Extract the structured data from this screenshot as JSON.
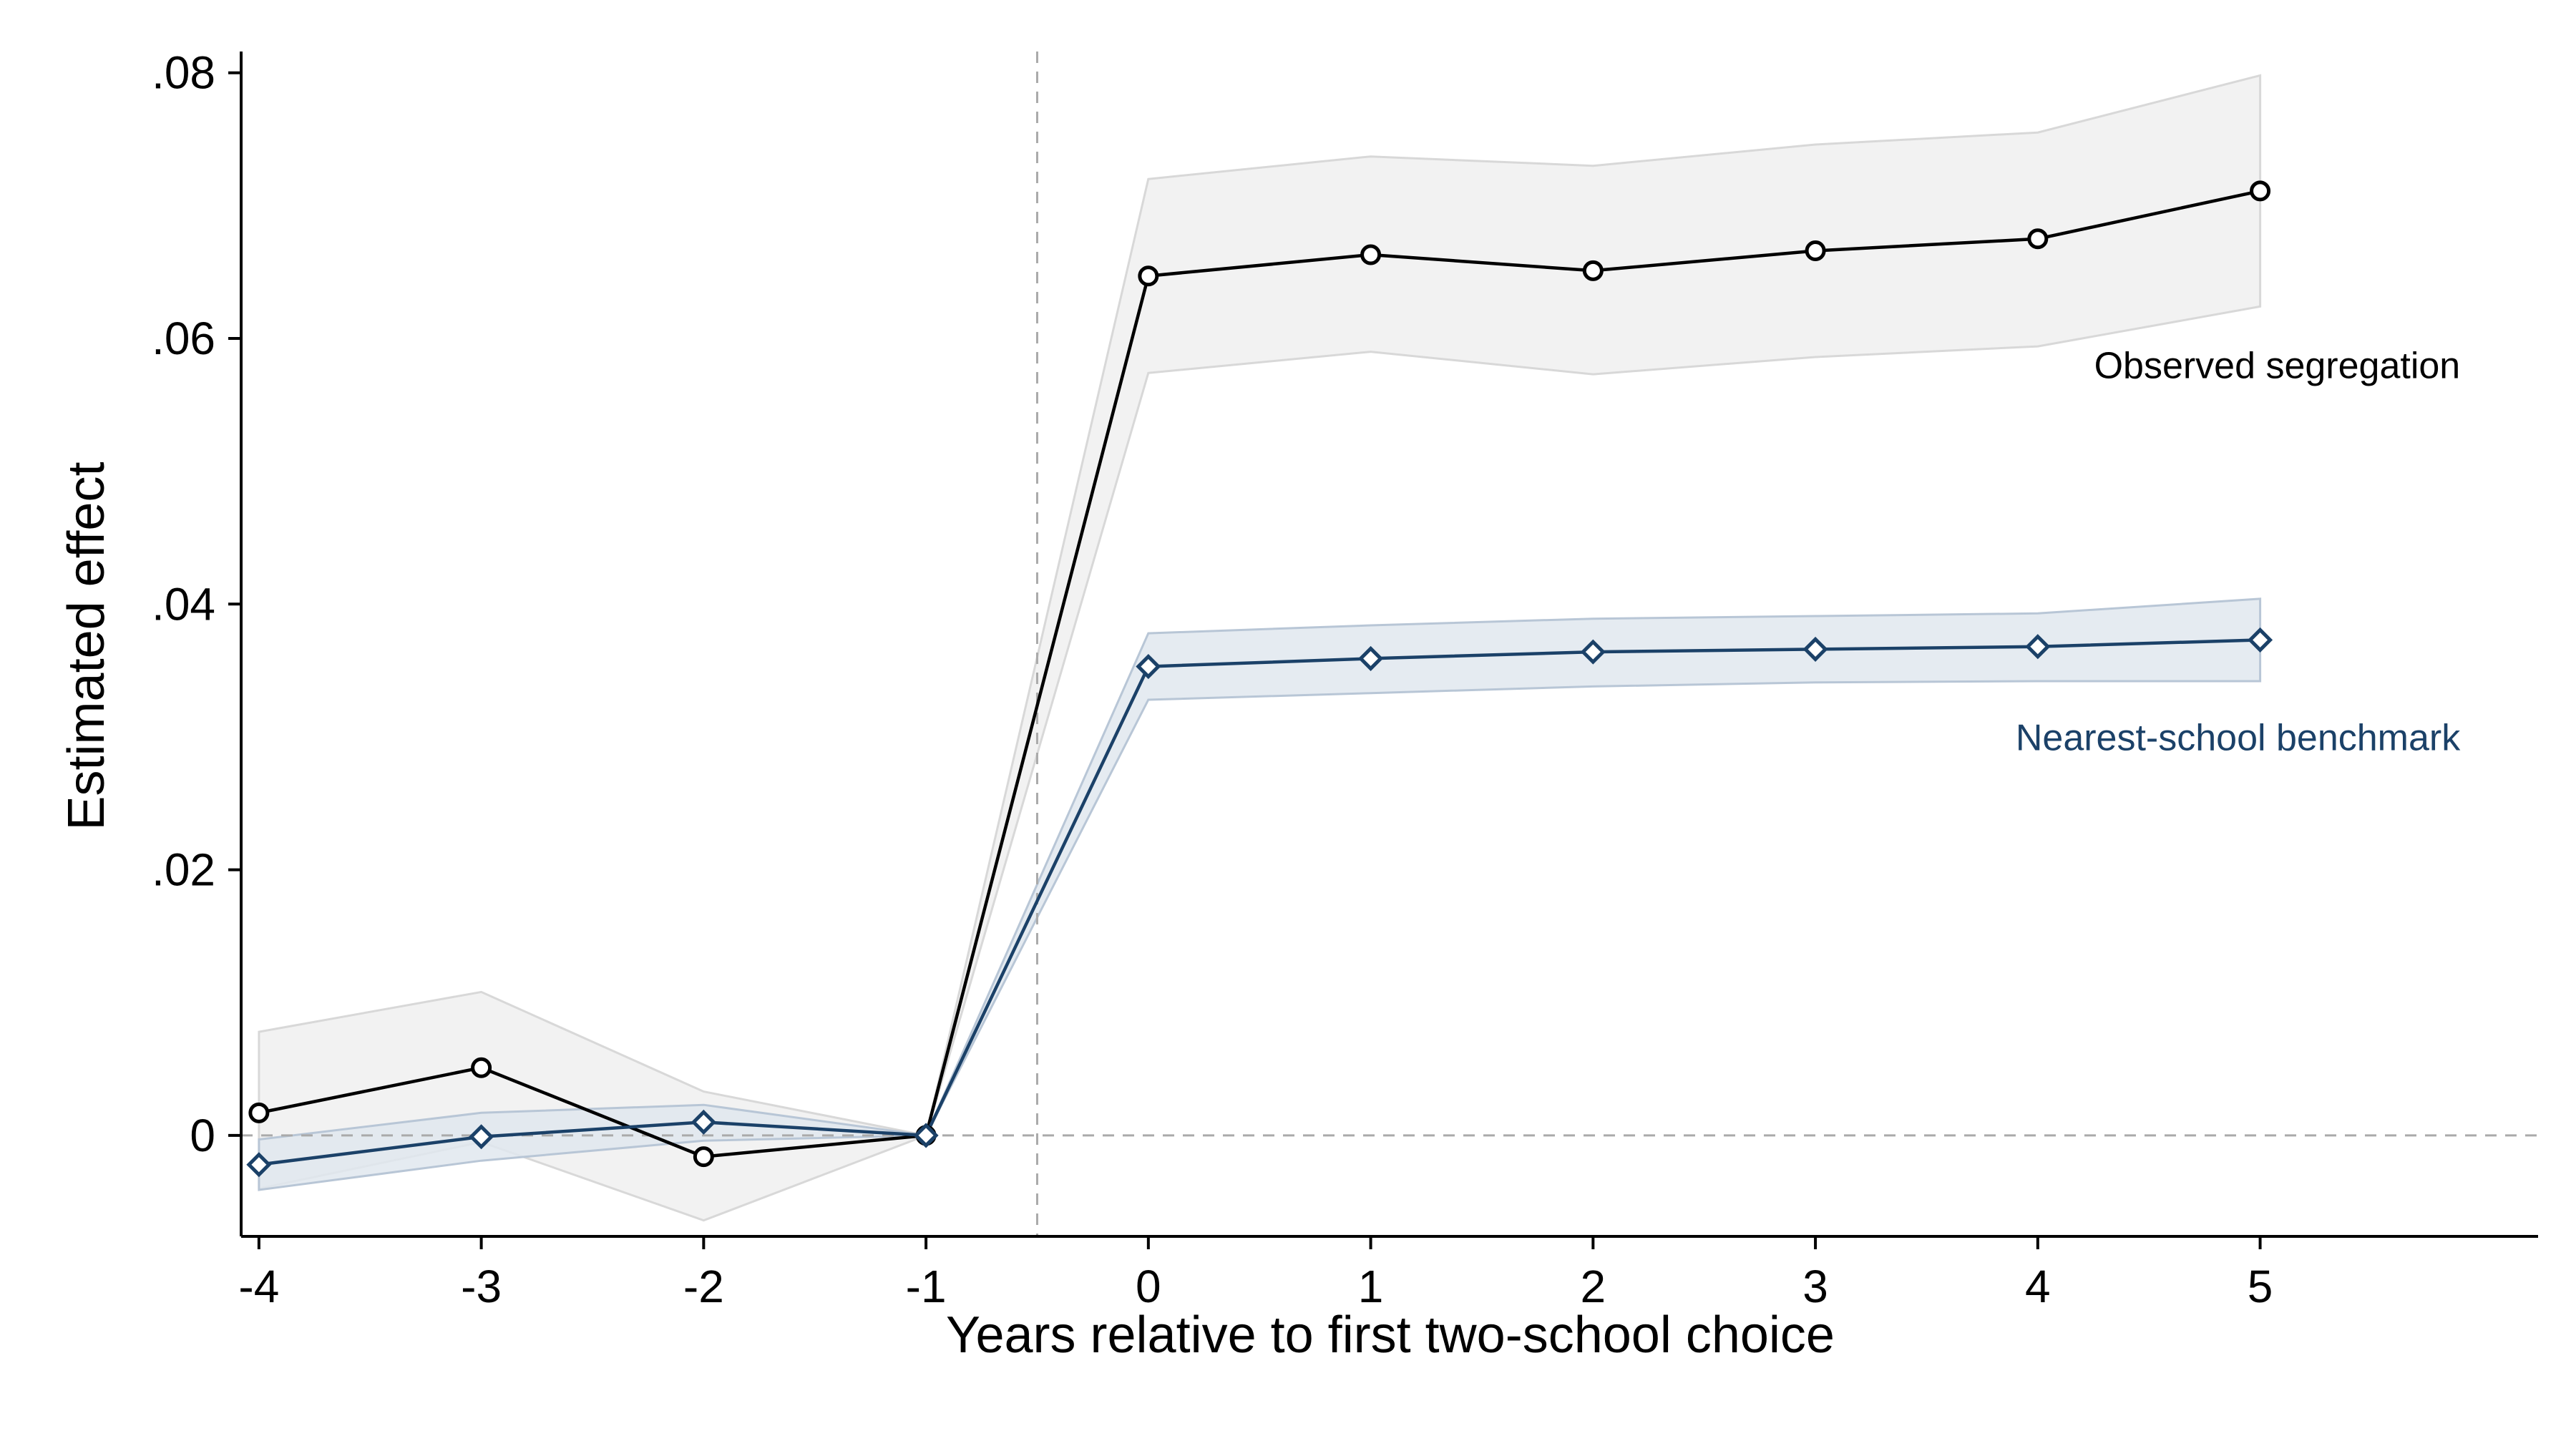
{
  "chart_data": {
    "type": "line",
    "title": "",
    "xlabel": "Years relative to first two-school choice",
    "ylabel": "Estimated effect",
    "x": [
      -4,
      -3,
      -2,
      -1,
      0,
      1,
      2,
      3,
      4,
      5
    ],
    "xlim": [
      -4.08,
      6.25
    ],
    "ylim": [
      -0.0076,
      0.0816
    ],
    "x_ticks": [
      -4,
      -3,
      -2,
      -1,
      0,
      1,
      2,
      3,
      4,
      5
    ],
    "x_tick_labels": [
      "-4",
      "-3",
      "-2",
      "-1",
      "0",
      "1",
      "2",
      "3",
      "4",
      "5"
    ],
    "y_ticks": [
      0,
      0.02,
      0.04,
      0.06,
      0.08
    ],
    "y_tick_labels": [
      "0",
      ".02",
      ".04",
      ".06",
      ".08"
    ],
    "grid": false,
    "reference_lines": {
      "vertical_x": -0.5,
      "horizontal_y": 0,
      "style": "dashed",
      "color": "#aaaaaa"
    },
    "series": [
      {
        "name": "Observed segregation",
        "color": "#000000",
        "band_color": "#f2f2f2",
        "band_edge_color": "#d8d8d8",
        "marker": "circle",
        "values": [
          0.0017,
          0.0051,
          -0.0016,
          0.0,
          0.0647,
          0.0663,
          0.0651,
          0.0666,
          0.0675,
          0.0711
        ],
        "ci_upper": [
          0.0078,
          0.0108,
          0.0033,
          0.0,
          0.072,
          0.0737,
          0.073,
          0.0746,
          0.0755,
          0.0798
        ],
        "ci_lower": [
          -0.004,
          -0.0005,
          -0.0064,
          0.0,
          0.0574,
          0.059,
          0.0573,
          0.0586,
          0.0594,
          0.0624
        ]
      },
      {
        "name": "Nearest-school benchmark",
        "color": "#1b4168",
        "band_color": "#e1e7ee",
        "band_edge_color": "#b8c6d6",
        "marker": "diamond",
        "values": [
          -0.0022,
          -0.0001,
          0.001,
          0.0,
          0.0353,
          0.0359,
          0.0364,
          0.0366,
          0.0368,
          0.0373
        ],
        "ci_upper": [
          -0.0003,
          0.0017,
          0.0023,
          0.0,
          0.0378,
          0.0384,
          0.0389,
          0.0391,
          0.0393,
          0.0404
        ],
        "ci_lower": [
          -0.0041,
          -0.0019,
          -0.0004,
          0.0,
          0.0328,
          0.0333,
          0.0338,
          0.0341,
          0.0342,
          0.0342
        ]
      }
    ],
    "series_label_anchor": [
      {
        "x": 5.9,
        "y": 0.057
      },
      {
        "x": 5.9,
        "y": 0.029
      }
    ]
  }
}
